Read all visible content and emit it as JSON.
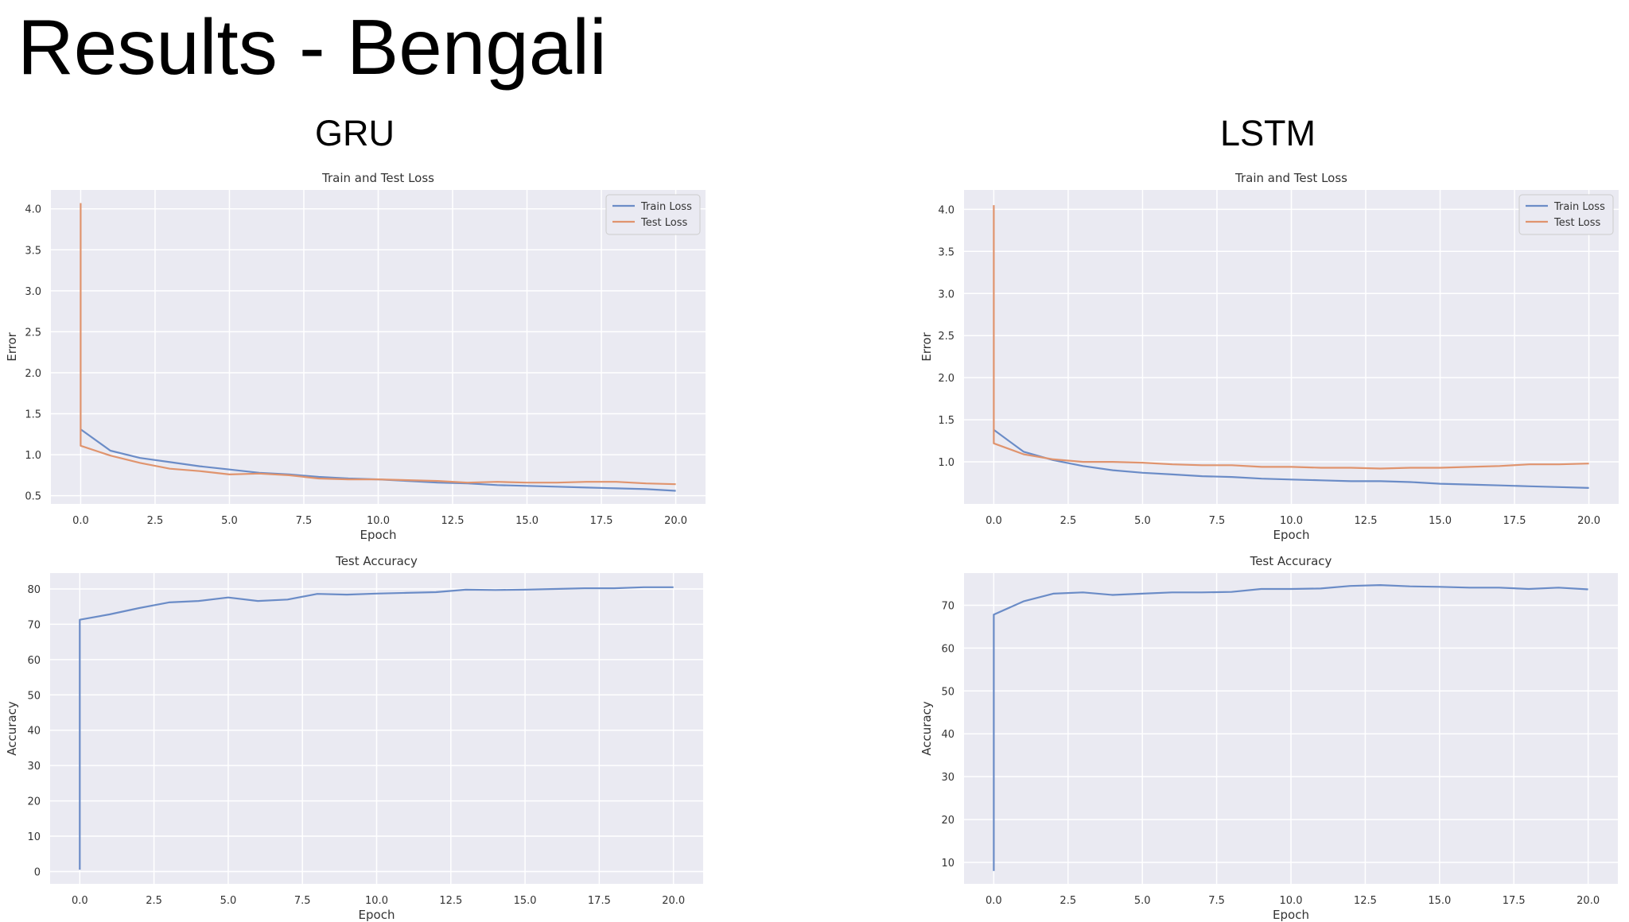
{
  "page": {
    "title": "Results - Bengali",
    "columns": [
      "GRU",
      "LSTM"
    ]
  },
  "colors": {
    "plot_background": "#eaeaf2",
    "grid": "#ffffff",
    "train": "#6b8cc7",
    "test": "#e0946e",
    "text": "#333333"
  },
  "chart_data": [
    {
      "id": "gru-loss",
      "type": "line",
      "title": "Train and Test Loss",
      "xlabel": "Epoch",
      "ylabel": "Error",
      "xlim": [
        -1,
        21
      ],
      "ylim": [
        0.4,
        4.23
      ],
      "xticks": [
        0.0,
        2.5,
        5.0,
        7.5,
        10.0,
        12.5,
        15.0,
        17.5,
        20.0
      ],
      "xtick_labels": [
        "0.0",
        "2.5",
        "5.0",
        "7.5",
        "10.0",
        "12.5",
        "15.0",
        "17.5",
        "20.0"
      ],
      "yticks": [
        0.5,
        1.0,
        1.5,
        2.0,
        2.5,
        3.0,
        3.5,
        4.0
      ],
      "ytick_labels": [
        "0.5",
        "1.0",
        "1.5",
        "2.0",
        "2.5",
        "3.0",
        "3.5",
        "4.0"
      ],
      "grid": true,
      "legend": "top-right",
      "series": [
        {
          "name": "Train Loss",
          "color_key": "train",
          "x": [
            0,
            1,
            2,
            3,
            4,
            5,
            6,
            7,
            8,
            9,
            10,
            11,
            12,
            13,
            14,
            15,
            16,
            17,
            18,
            19,
            20
          ],
          "y": [
            1.31,
            1.05,
            0.96,
            0.91,
            0.86,
            0.82,
            0.78,
            0.76,
            0.73,
            0.71,
            0.7,
            0.68,
            0.66,
            0.65,
            0.63,
            0.62,
            0.61,
            0.6,
            0.59,
            0.58,
            0.56
          ]
        },
        {
          "name": "Test Loss",
          "color_key": "test",
          "x": [
            0,
            0,
            1,
            2,
            3,
            4,
            5,
            6,
            7,
            8,
            9,
            10,
            11,
            12,
            13,
            14,
            15,
            16,
            17,
            18,
            19,
            20
          ],
          "y": [
            4.07,
            1.11,
            0.99,
            0.9,
            0.83,
            0.8,
            0.76,
            0.77,
            0.75,
            0.71,
            0.7,
            0.7,
            0.69,
            0.68,
            0.66,
            0.67,
            0.66,
            0.66,
            0.67,
            0.67,
            0.65,
            0.64
          ]
        }
      ]
    },
    {
      "id": "lstm-loss",
      "type": "line",
      "title": "Train and Test Loss",
      "xlabel": "Epoch",
      "ylabel": "Error",
      "xlim": [
        -1,
        21
      ],
      "ylim": [
        0.5,
        4.23
      ],
      "xticks": [
        0.0,
        2.5,
        5.0,
        7.5,
        10.0,
        12.5,
        15.0,
        17.5,
        20.0
      ],
      "xtick_labels": [
        "0.0",
        "2.5",
        "5.0",
        "7.5",
        "10.0",
        "12.5",
        "15.0",
        "17.5",
        "20.0"
      ],
      "yticks": [
        1.0,
        1.5,
        2.0,
        2.5,
        3.0,
        3.5,
        4.0
      ],
      "ytick_labels": [
        "1.0",
        "1.5",
        "2.0",
        "2.5",
        "3.0",
        "3.5",
        "4.0"
      ],
      "grid": true,
      "legend": "top-right",
      "series": [
        {
          "name": "Train Loss",
          "color_key": "train",
          "x": [
            0,
            1,
            2,
            3,
            4,
            5,
            6,
            7,
            8,
            9,
            10,
            11,
            12,
            13,
            14,
            15,
            16,
            17,
            18,
            19,
            20
          ],
          "y": [
            1.38,
            1.12,
            1.02,
            0.95,
            0.9,
            0.87,
            0.85,
            0.83,
            0.82,
            0.8,
            0.79,
            0.78,
            0.77,
            0.77,
            0.76,
            0.74,
            0.73,
            0.72,
            0.71,
            0.7,
            0.69
          ]
        },
        {
          "name": "Test Loss",
          "color_key": "test",
          "x": [
            0,
            0,
            1,
            2,
            3,
            4,
            5,
            6,
            7,
            8,
            9,
            10,
            11,
            12,
            13,
            14,
            15,
            16,
            17,
            18,
            19,
            20
          ],
          "y": [
            4.05,
            1.22,
            1.09,
            1.03,
            1.0,
            1.0,
            0.99,
            0.97,
            0.96,
            0.96,
            0.94,
            0.94,
            0.93,
            0.93,
            0.92,
            0.93,
            0.93,
            0.94,
            0.95,
            0.97,
            0.97,
            0.98
          ]
        }
      ]
    },
    {
      "id": "gru-acc",
      "type": "line",
      "title": "Test Accuracy",
      "xlabel": "Epoch",
      "ylabel": "Accuracy",
      "xlim": [
        -1,
        21
      ],
      "ylim": [
        -3.5,
        84.5
      ],
      "xticks": [
        0.0,
        2.5,
        5.0,
        7.5,
        10.0,
        12.5,
        15.0,
        17.5,
        20.0
      ],
      "xtick_labels": [
        "0.0",
        "2.5",
        "5.0",
        "7.5",
        "10.0",
        "12.5",
        "15.0",
        "17.5",
        "20.0"
      ],
      "yticks": [
        0,
        10,
        20,
        30,
        40,
        50,
        60,
        70,
        80
      ],
      "ytick_labels": [
        "0",
        "10",
        "20",
        "30",
        "40",
        "50",
        "60",
        "70",
        "80"
      ],
      "grid": true,
      "series": [
        {
          "name": "",
          "color_key": "train",
          "x": [
            0,
            0,
            1,
            2,
            3,
            4,
            5,
            6,
            7,
            8,
            9,
            10,
            11,
            12,
            13,
            14,
            15,
            16,
            17,
            18,
            19,
            20
          ],
          "y": [
            0.5,
            71.3,
            72.8,
            74.6,
            76.2,
            76.6,
            77.6,
            76.6,
            77.0,
            78.6,
            78.4,
            78.7,
            78.9,
            79.1,
            79.8,
            79.7,
            79.8,
            80.0,
            80.2,
            80.2,
            80.5,
            80.5
          ]
        }
      ]
    },
    {
      "id": "lstm-acc",
      "type": "line",
      "title": "Test Accuracy",
      "xlabel": "Epoch",
      "ylabel": "Accuracy",
      "xlim": [
        -1,
        21
      ],
      "ylim": [
        5,
        77.5
      ],
      "xticks": [
        0.0,
        2.5,
        5.0,
        7.5,
        10.0,
        12.5,
        15.0,
        17.5,
        20.0
      ],
      "xtick_labels": [
        "0.0",
        "2.5",
        "5.0",
        "7.5",
        "10.0",
        "12.5",
        "15.0",
        "17.5",
        "20.0"
      ],
      "yticks": [
        10,
        20,
        30,
        40,
        50,
        60,
        70
      ],
      "ytick_labels": [
        "10",
        "20",
        "30",
        "40",
        "50",
        "60",
        "70"
      ],
      "grid": true,
      "series": [
        {
          "name": "",
          "color_key": "train",
          "x": [
            0,
            0,
            1,
            2,
            3,
            4,
            5,
            6,
            7,
            8,
            9,
            10,
            11,
            12,
            13,
            14,
            15,
            16,
            17,
            18,
            19,
            20
          ],
          "y": [
            8.0,
            67.8,
            70.9,
            72.7,
            73.0,
            72.4,
            72.7,
            73.0,
            73.0,
            73.1,
            73.8,
            73.8,
            73.9,
            74.5,
            74.7,
            74.4,
            74.3,
            74.1,
            74.1,
            73.8,
            74.1,
            73.7
          ]
        }
      ]
    }
  ]
}
